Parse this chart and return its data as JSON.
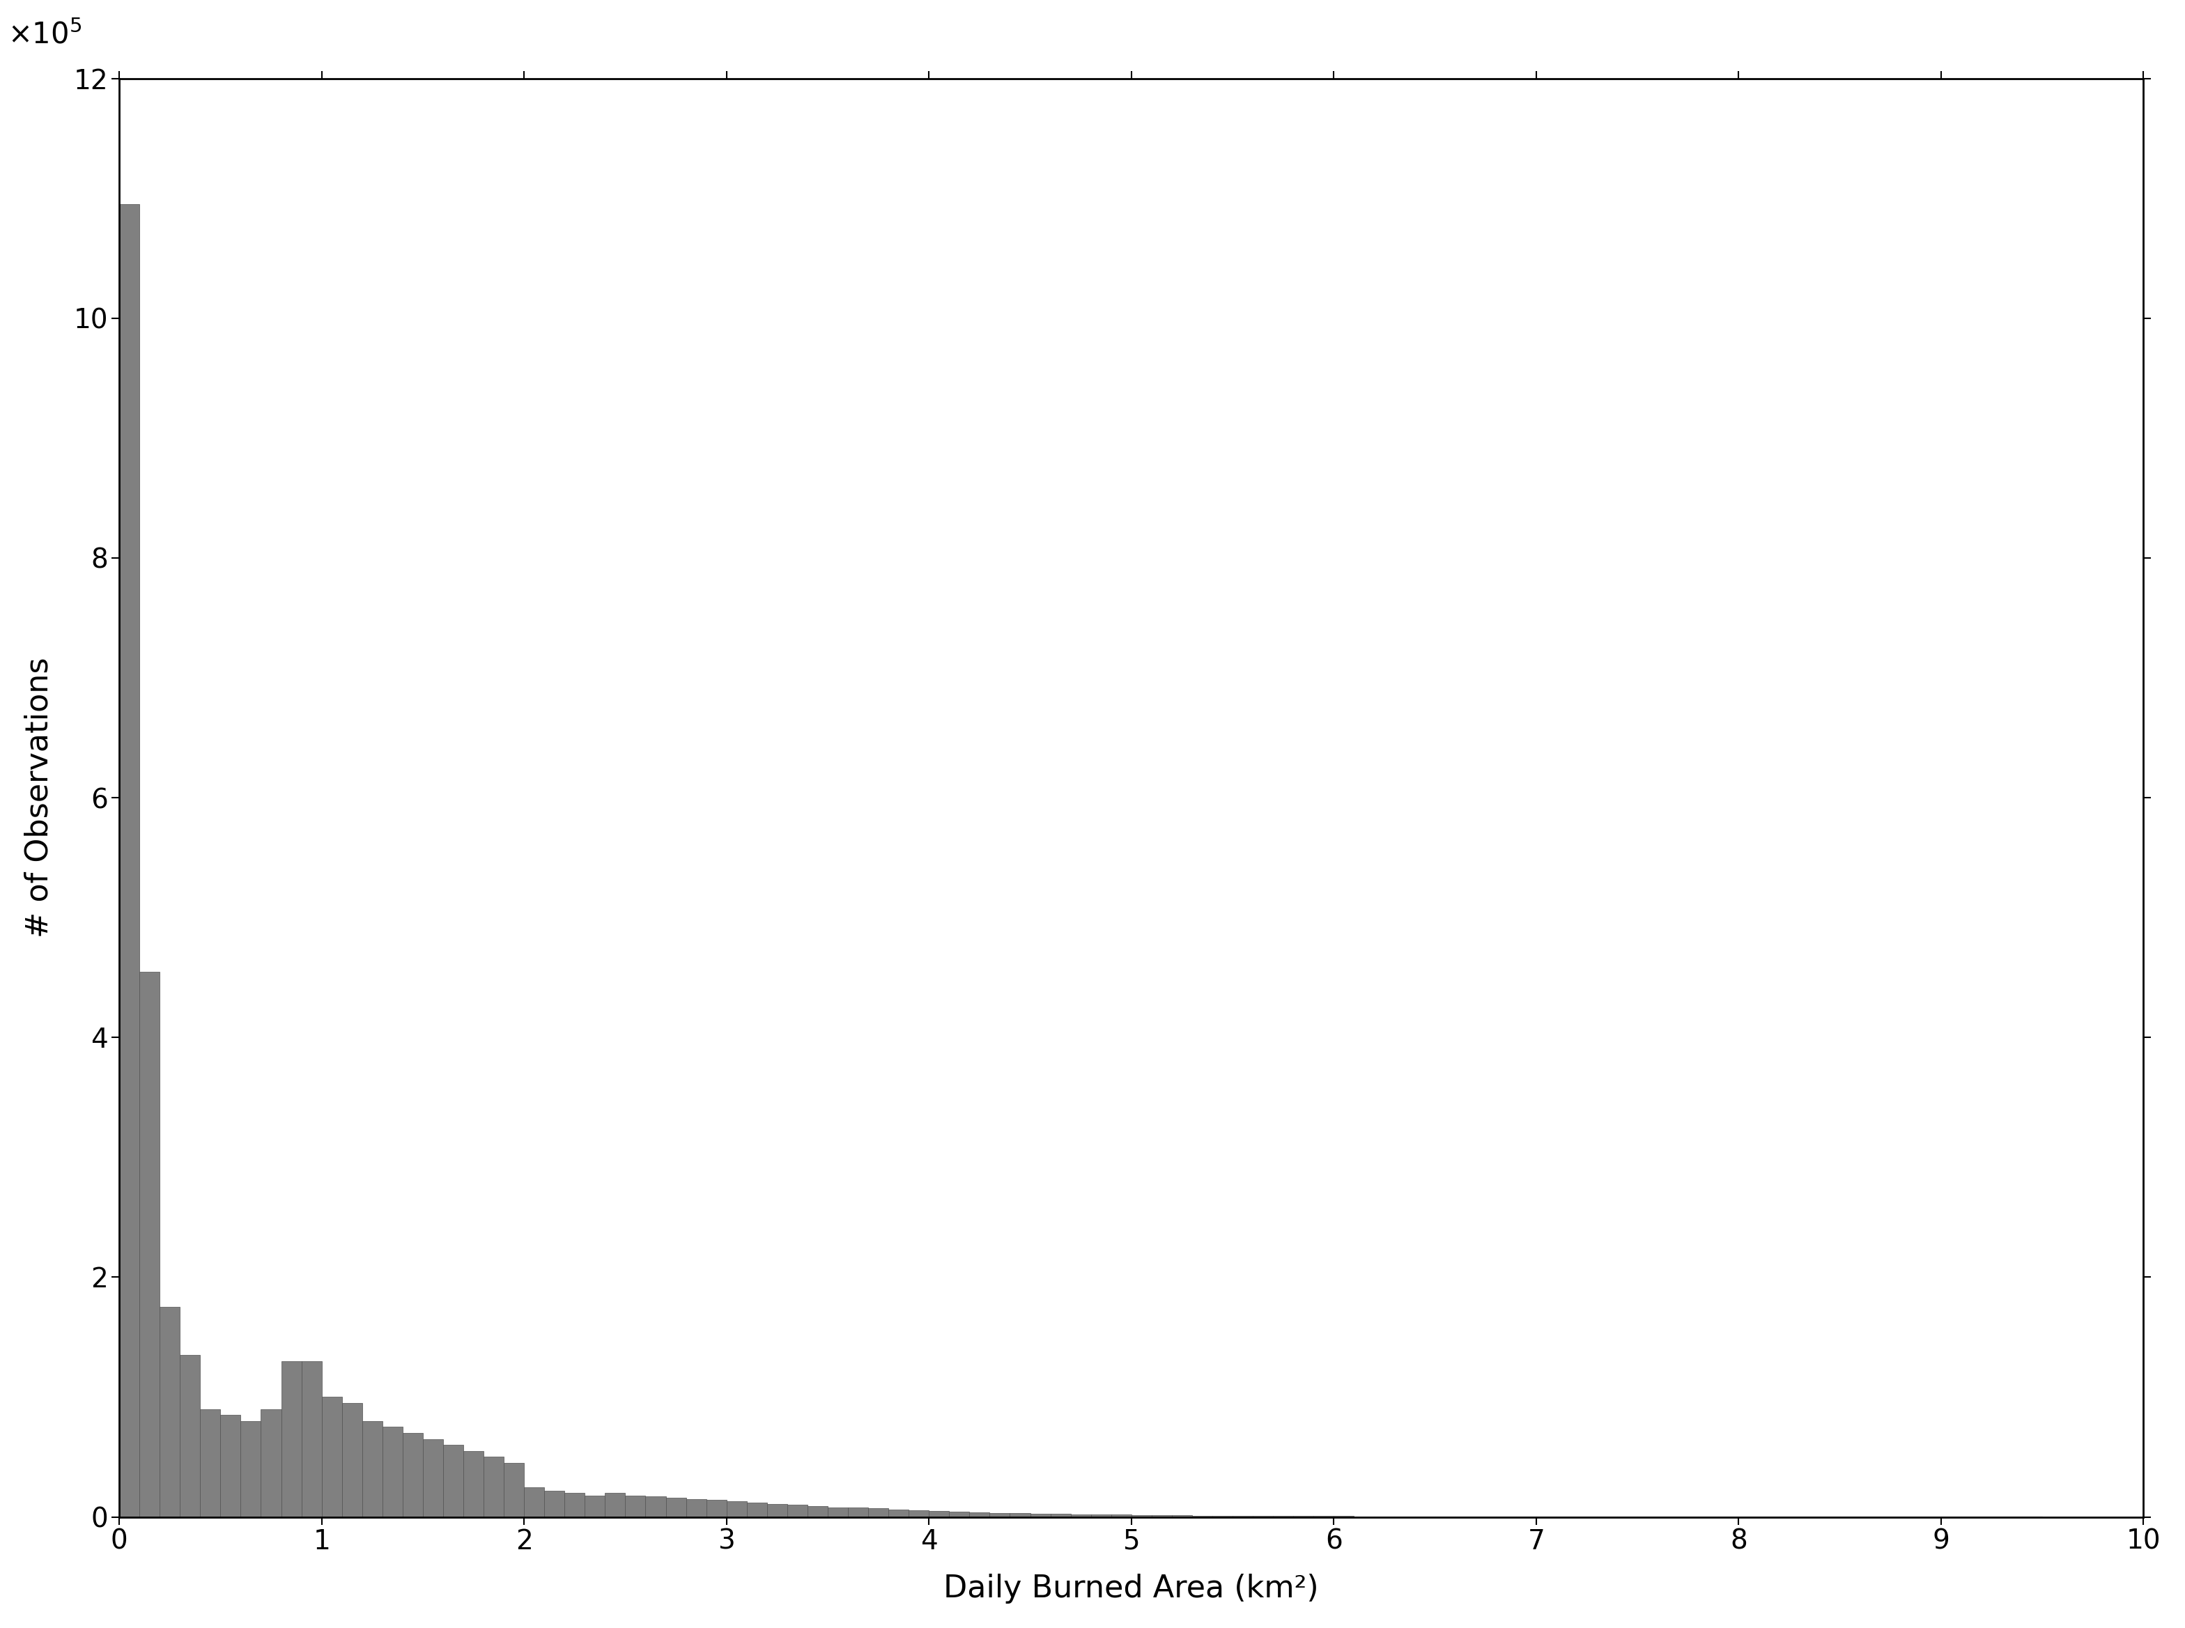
{
  "bar_counts": [
    1095000,
    455000,
    175000,
    135000,
    90000,
    85000,
    80000,
    90000,
    130000,
    130000,
    100000,
    95000,
    80000,
    75000,
    70000,
    65000,
    60000,
    55000,
    50000,
    45000,
    25000,
    22000,
    20000,
    18000,
    20000,
    18000,
    17000,
    16000,
    15000,
    14000,
    13000,
    12000,
    11000,
    10000,
    9000,
    8000,
    8000,
    7000,
    6000,
    5500,
    5000,
    4500,
    4000,
    3500,
    3000,
    2800,
    2500,
    2200,
    2000,
    1800,
    1600,
    1400,
    1200,
    1100,
    1000,
    900,
    800,
    750,
    700,
    650,
    600,
    550,
    500,
    450,
    400,
    380,
    350,
    320,
    300,
    280,
    250,
    220,
    200,
    180,
    160,
    140,
    130,
    120,
    110,
    100,
    90,
    85,
    80,
    75,
    70,
    65,
    60,
    55,
    50,
    45,
    40,
    35,
    30,
    25,
    20,
    15,
    12,
    10,
    8,
    5
  ],
  "bin_width": 0.1,
  "x_start": 0.0,
  "bar_color": "#808080",
  "bar_edgecolor": "#505050",
  "xlabel": "Daily Burned Area (km²)",
  "ylabel": "# of Observations",
  "xlim": [
    0,
    10
  ],
  "ylim": [
    0,
    1200000
  ],
  "ytick_values": [
    0,
    200000,
    400000,
    600000,
    800000,
    1000000,
    1200000
  ],
  "ytick_labels": [
    "0",
    "2",
    "4",
    "6",
    "8",
    "10",
    "12"
  ],
  "xtick_values": [
    0,
    1,
    2,
    3,
    4,
    5,
    6,
    7,
    8,
    9,
    10
  ],
  "label_fontsize": 32,
  "tick_fontsize": 28,
  "figure_facecolor": "#ffffff",
  "linewidth": 0.5
}
